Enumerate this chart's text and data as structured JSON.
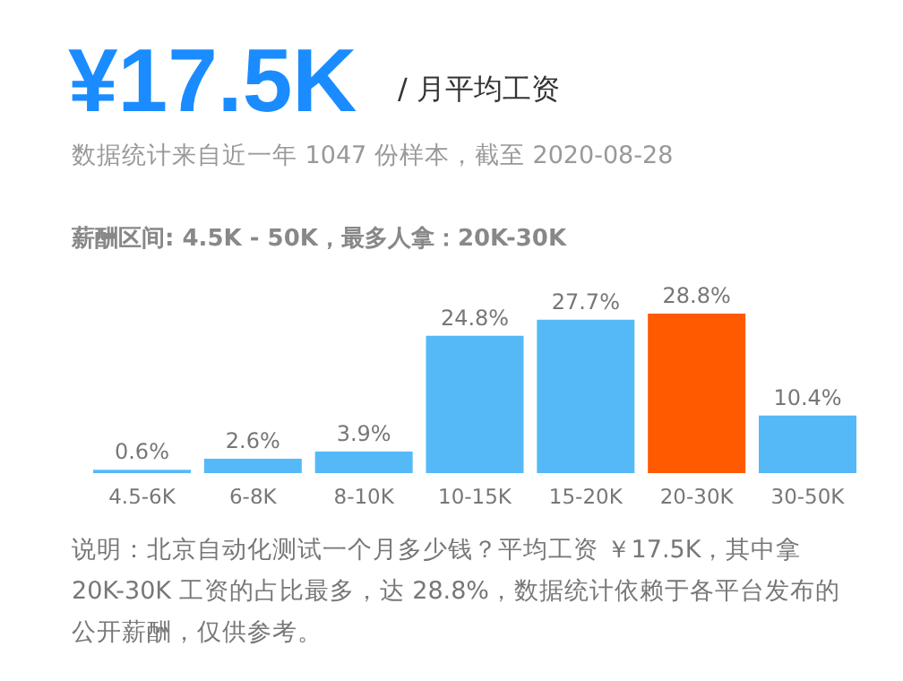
{
  "chart_data": {
    "type": "bar",
    "title": "¥17.5K",
    "subtitle": "/ 月平均工资",
    "annotations": [
      "数据统计来自近一年 1047 份样本，截至 2020-08-28",
      "薪酬区间: 4.5K - 50K，最多人拿：20K-30K",
      "说明：北京自动化测试一个月多少钱？平均工资 ￥17.5K，其中拿 20K-30K 工资的占比最多，达 28.8%，数据统计依赖于各平台发布的公开薪酬，仅供参考。"
    ],
    "categories": [
      "4.5-6K",
      "6-8K",
      "8-10K",
      "10-15K",
      "15-20K",
      "20-30K",
      "30-50K"
    ],
    "values": [
      0.6,
      2.6,
      3.9,
      24.8,
      27.7,
      28.8,
      10.4
    ],
    "colors": [
      "#55b9f8",
      "#55b9f8",
      "#55b9f8",
      "#55b9f8",
      "#55b9f8",
      "#ff5a00",
      "#55b9f8"
    ],
    "value_labels": [
      "0.6%",
      "2.6%",
      "3.9%",
      "24.8%",
      "27.7%",
      "28.8%",
      "10.4%"
    ]
  }
}
